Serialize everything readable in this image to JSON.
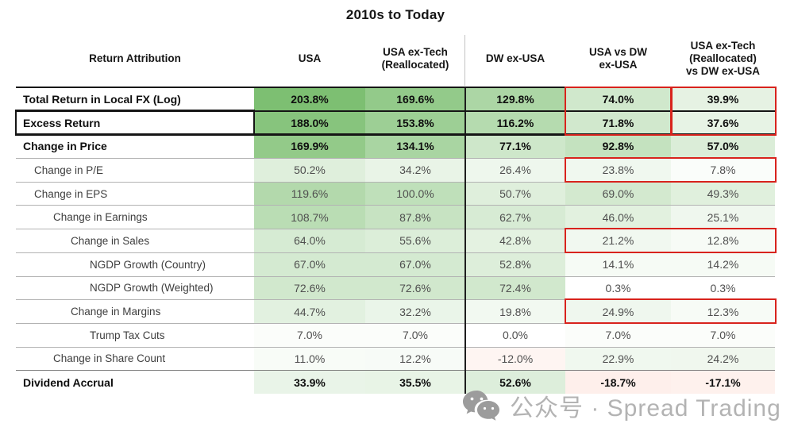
{
  "chart_data": {
    "type": "table",
    "title": "2010s to Today",
    "columns": [
      {
        "label": "Return Attribution"
      },
      {
        "label": "USA"
      },
      {
        "label": "USA ex-Tech\n(Reallocated)"
      },
      {
        "label": "DW ex-USA"
      },
      {
        "label": "USA vs DW\nex-USA"
      },
      {
        "label": "USA ex-Tech\n(Reallocated)\nvs DW ex-USA"
      }
    ],
    "rows": [
      {
        "label": "Total Return in Local FX (Log)",
        "indent": 0,
        "bold": true,
        "values": [
          203.8,
          169.6,
          129.8,
          74.0,
          39.9
        ]
      },
      {
        "label": "Excess Return",
        "indent": 0,
        "bold": true,
        "outlined": true,
        "values": [
          188.0,
          153.8,
          116.2,
          71.8,
          37.6
        ]
      },
      {
        "label": "Change in Price",
        "indent": 0,
        "bold": true,
        "values": [
          169.9,
          134.1,
          77.1,
          92.8,
          57.0
        ]
      },
      {
        "label": "Change in P/E",
        "indent": 1,
        "bold": false,
        "values": [
          50.2,
          34.2,
          26.4,
          23.8,
          7.8
        ]
      },
      {
        "label": "Change in EPS",
        "indent": 1,
        "bold": false,
        "values": [
          119.6,
          100.0,
          50.7,
          69.0,
          49.3
        ]
      },
      {
        "label": "Change in Earnings",
        "indent": 2,
        "bold": false,
        "values": [
          108.7,
          87.8,
          62.7,
          46.0,
          25.1
        ]
      },
      {
        "label": "Change in Sales",
        "indent": 3,
        "bold": false,
        "values": [
          64.0,
          55.6,
          42.8,
          21.2,
          12.8
        ]
      },
      {
        "label": "NGDP Growth (Country)",
        "indent": 4,
        "bold": false,
        "values": [
          67.0,
          67.0,
          52.8,
          14.1,
          14.2
        ]
      },
      {
        "label": "NGDP Growth (Weighted)",
        "indent": 4,
        "bold": false,
        "values": [
          72.6,
          72.6,
          72.4,
          0.3,
          0.3
        ]
      },
      {
        "label": "Change in Margins",
        "indent": 3,
        "bold": false,
        "values": [
          44.7,
          32.2,
          19.8,
          24.9,
          12.3
        ]
      },
      {
        "label": "Trump Tax Cuts",
        "indent": 4,
        "bold": false,
        "values": [
          7.0,
          7.0,
          0.0,
          7.0,
          7.0
        ]
      },
      {
        "label": "Change in Share Count",
        "indent": 2,
        "bold": false,
        "values": [
          11.0,
          12.2,
          -12.0,
          22.9,
          24.2
        ]
      },
      {
        "label": "Dividend Accrual",
        "indent": 0,
        "bold": true,
        "values": [
          33.9,
          35.5,
          52.6,
          -18.7,
          -17.1
        ]
      }
    ],
    "value_format": "percent_1dp",
    "heatmap": {
      "scale_max": 203.8,
      "positive_color": "#7dbf72",
      "negative_color": "#f05528",
      "zero_color": "#ffffff"
    },
    "highlights": {
      "red_box_color": "#d8231d",
      "outlined_row_label": "Excess Return",
      "red_boxes": [
        {
          "rows": [
            0,
            1
          ],
          "value_cols": [
            3
          ]
        },
        {
          "rows": [
            0,
            1
          ],
          "value_cols": [
            4
          ]
        },
        {
          "rows": [
            3
          ],
          "value_cols": [
            3,
            4
          ]
        },
        {
          "rows": [
            6
          ],
          "value_cols": [
            3,
            4
          ]
        },
        {
          "rows": [
            9
          ],
          "value_cols": [
            3,
            4
          ]
        }
      ]
    }
  },
  "watermark": {
    "icon": "wechat-icon",
    "text": "公众号 · Spread Trading"
  }
}
